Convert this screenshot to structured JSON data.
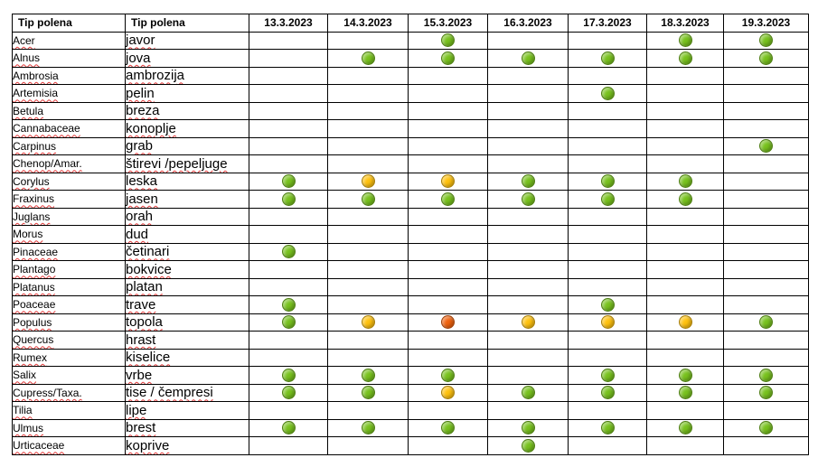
{
  "header": {
    "col1": "Tip polena",
    "col2": "Tip polena",
    "dates": [
      "13.3.2023",
      "14.3.2023",
      "15.3.2023",
      "16.3.2023",
      "17.3.2023",
      "18.3.2023",
      "19.3.2023"
    ]
  },
  "level_colors": {
    "low": "#78c21e",
    "moderate": "#ffc20e",
    "high": "#f0620e"
  },
  "rows": [
    {
      "latin": "Acer",
      "local": "javor",
      "levels": [
        "",
        "",
        "low",
        "",
        "",
        "low",
        "low"
      ]
    },
    {
      "latin": "Alnus",
      "local": "jova",
      "levels": [
        "",
        "low",
        "low",
        "low",
        "low",
        "low",
        "low"
      ]
    },
    {
      "latin": "Ambrosia",
      "local": "ambrozija",
      "levels": [
        "",
        "",
        "",
        "",
        "",
        "",
        ""
      ]
    },
    {
      "latin": "Artemisia",
      "local": "pelin",
      "levels": [
        "",
        "",
        "",
        "",
        "low",
        "",
        ""
      ]
    },
    {
      "latin": "Betula",
      "local": "breza",
      "levels": [
        "",
        "",
        "",
        "",
        "",
        "",
        ""
      ]
    },
    {
      "latin": "Cannabaceae",
      "local": "konoplje",
      "levels": [
        "",
        "",
        "",
        "",
        "",
        "",
        ""
      ]
    },
    {
      "latin": "Carpinus",
      "local": "grab",
      "levels": [
        "",
        "",
        "",
        "",
        "",
        "",
        "low"
      ]
    },
    {
      "latin": "Chenop/Amar.",
      "local": "štirevi /pepeljuge",
      "levels": [
        "",
        "",
        "",
        "",
        "",
        "",
        ""
      ]
    },
    {
      "latin": "Corylus",
      "local": "leska",
      "levels": [
        "low",
        "moderate",
        "moderate",
        "low",
        "low",
        "low",
        ""
      ]
    },
    {
      "latin": "Fraxinus",
      "local": "jasen",
      "levels": [
        "low",
        "low",
        "low",
        "low",
        "low",
        "low",
        ""
      ]
    },
    {
      "latin": "Juglans",
      "local": "orah",
      "levels": [
        "",
        "",
        "",
        "",
        "",
        "",
        ""
      ]
    },
    {
      "latin": "Morus",
      "local": "dud",
      "levels": [
        "",
        "",
        "",
        "",
        "",
        "",
        ""
      ]
    },
    {
      "latin": "Pinaceae",
      "local": "četinari",
      "levels": [
        "low",
        "",
        "",
        "",
        "",
        "",
        ""
      ]
    },
    {
      "latin": "Plantago",
      "local": "bokvice",
      "levels": [
        "",
        "",
        "",
        "",
        "",
        "",
        ""
      ]
    },
    {
      "latin": "Platanus",
      "local": "platan",
      "levels": [
        "",
        "",
        "",
        "",
        "",
        "",
        ""
      ]
    },
    {
      "latin": "Poaceae",
      "local": "trave",
      "levels": [
        "low",
        "",
        "",
        "",
        "low",
        "",
        ""
      ]
    },
    {
      "latin": "Populus",
      "local": "topola",
      "levels": [
        "low",
        "moderate",
        "high",
        "moderate",
        "moderate",
        "moderate",
        "low"
      ]
    },
    {
      "latin": "Quercus",
      "local": "hrast",
      "levels": [
        "",
        "",
        "",
        "",
        "",
        "",
        ""
      ]
    },
    {
      "latin": "Rumex",
      "local": "kiselice",
      "levels": [
        "",
        "",
        "",
        "",
        "",
        "",
        ""
      ]
    },
    {
      "latin": "Salix",
      "local": "vrbe",
      "levels": [
        "low",
        "low",
        "low",
        "",
        "low",
        "low",
        "low"
      ]
    },
    {
      "latin": "Cupress/Taxa.",
      "local": "tise / čempresi",
      "levels": [
        "low",
        "low",
        "moderate",
        "low",
        "low",
        "low",
        "low"
      ]
    },
    {
      "latin": "Tilia",
      "local": "lipe",
      "levels": [
        "",
        "",
        "",
        "",
        "",
        "",
        ""
      ]
    },
    {
      "latin": "Ulmus",
      "local": "brest",
      "levels": [
        "low",
        "low",
        "low",
        "low",
        "low",
        "low",
        "low"
      ]
    },
    {
      "latin": "Urticaceae",
      "local": "koprive",
      "levels": [
        "",
        "",
        "",
        "low",
        "",
        "",
        ""
      ]
    }
  ]
}
